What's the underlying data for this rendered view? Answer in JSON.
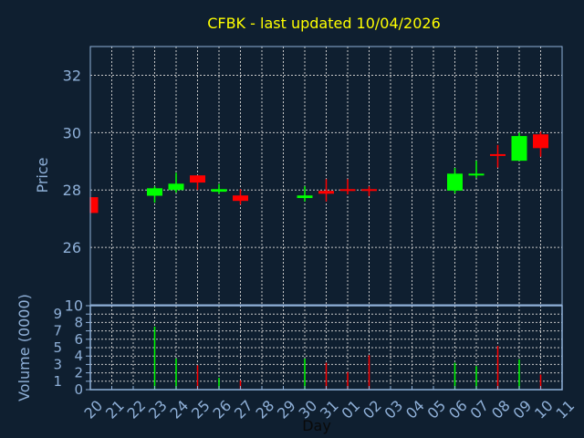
{
  "chart_data": {
    "type": "candlestick",
    "title": "CFBK - last updated 10/04/2026",
    "xlabel": "Day",
    "ylabel": "Price",
    "volume_ylabel": "Volume (0000)",
    "x_ticks": [
      "20",
      "21",
      "22",
      "23",
      "24",
      "25",
      "26",
      "27",
      "28",
      "29",
      "30",
      "31",
      "01",
      "02",
      "03",
      "04",
      "05",
      "06",
      "07",
      "08",
      "09",
      "10",
      "11"
    ],
    "ylim": [
      24,
      33
    ],
    "y_ticks": [
      26,
      28,
      30,
      32
    ],
    "volume_ylim": [
      0,
      10
    ],
    "volume_ticks": [
      0,
      1,
      2,
      3,
      4,
      5,
      6,
      7,
      8,
      9,
      10
    ],
    "grid": true,
    "colors": {
      "up": "#00ff00",
      "down": "#ff0000",
      "background": "#0f1f30",
      "axis": "#8fb0d8",
      "title": "#ffff00"
    },
    "candles": [
      {
        "day": "20",
        "open": 27.75,
        "high": 27.75,
        "low": 27.2,
        "close": 27.2,
        "volume": 0
      },
      {
        "day": "23",
        "open": 27.8,
        "high": 28.13,
        "low": 27.56,
        "close": 28.06,
        "volume": 7.5
      },
      {
        "day": "24",
        "open": 28.0,
        "high": 28.6,
        "low": 27.91,
        "close": 28.22,
        "volume": 3.7
      },
      {
        "day": "25",
        "open": 28.51,
        "high": 28.51,
        "low": 28.0,
        "close": 28.26,
        "volume": 2.9
      },
      {
        "day": "26",
        "open": 27.94,
        "high": 28.21,
        "low": 27.87,
        "close": 28.03,
        "volume": 1.4
      },
      {
        "day": "27",
        "open": 27.81,
        "high": 28.03,
        "low": 27.49,
        "close": 27.62,
        "volume": 1.1
      },
      {
        "day": "30",
        "open": 27.72,
        "high": 28.13,
        "low": 27.6,
        "close": 27.81,
        "volume": 3.7
      },
      {
        "day": "31",
        "open": 27.97,
        "high": 28.38,
        "low": 27.6,
        "close": 27.87,
        "volume": 3.2
      },
      {
        "day": "01",
        "open": 28.03,
        "high": 28.38,
        "low": 27.85,
        "close": 27.97,
        "volume": 2.1
      },
      {
        "day": "02",
        "open": 28.03,
        "high": 28.13,
        "low": 27.79,
        "close": 27.97,
        "volume": 4.1
      },
      {
        "day": "06",
        "open": 27.98,
        "high": 28.77,
        "low": 27.88,
        "close": 28.57,
        "volume": 3.2
      },
      {
        "day": "07",
        "open": 28.52,
        "high": 29.02,
        "low": 28.42,
        "close": 28.57,
        "volume": 2.8
      },
      {
        "day": "08",
        "open": 29.25,
        "high": 29.57,
        "low": 28.78,
        "close": 29.19,
        "volume": 5.2
      },
      {
        "day": "09",
        "open": 29.02,
        "high": 30.0,
        "low": 29.02,
        "close": 29.88,
        "volume": 3.6
      },
      {
        "day": "10",
        "open": 29.94,
        "high": 30.03,
        "low": 29.16,
        "close": 29.46,
        "volume": 1.8
      }
    ]
  }
}
